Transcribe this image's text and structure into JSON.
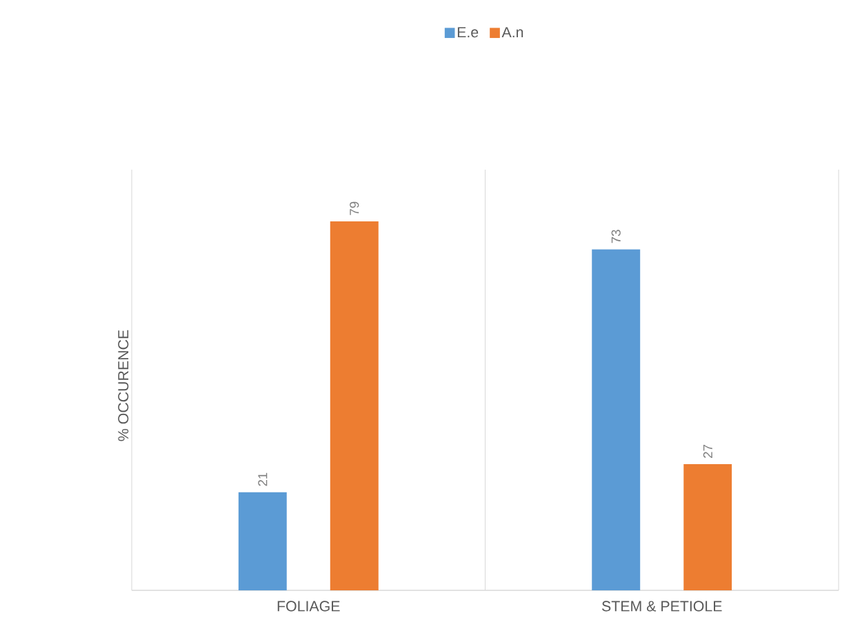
{
  "chart_data": {
    "type": "bar",
    "ylabel": "% OCCURENCE",
    "categories": [
      "FOLIAGE",
      "STEM & PETIOLE"
    ],
    "series": [
      {
        "name": "E.e",
        "color": "#5b9bd5",
        "values": [
          21,
          73
        ]
      },
      {
        "name": "A.n",
        "color": "#ed7d31",
        "values": [
          79,
          27
        ]
      }
    ],
    "data_labels": true,
    "grid": "x",
    "legend": "top",
    "tick_labels": "x"
  }
}
